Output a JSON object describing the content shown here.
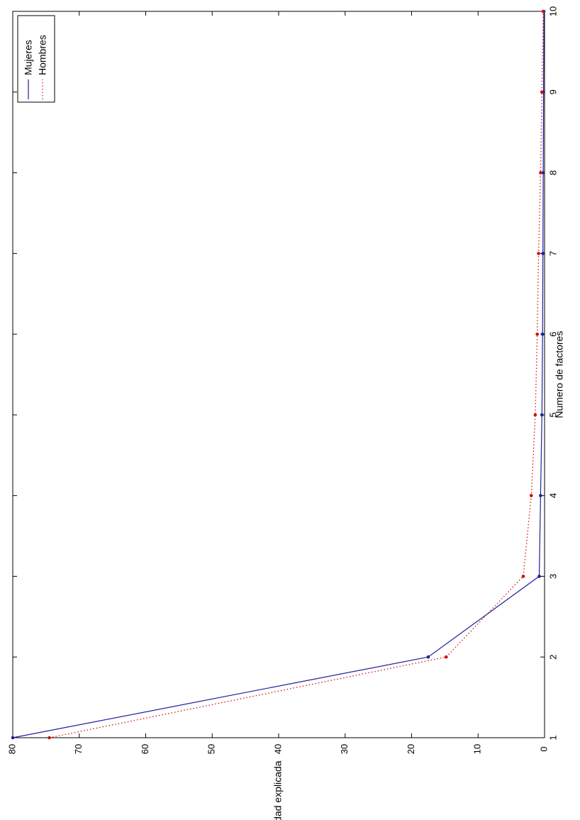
{
  "chart_data": {
    "type": "line",
    "xlabel": "Numero de factores",
    "ylabel": "Variabilidad explicada",
    "x": [
      1,
      2,
      3,
      4,
      5,
      6,
      7,
      8,
      9,
      10
    ],
    "xlim": [
      1,
      10
    ],
    "ylim": [
      0,
      80
    ],
    "yticks": [
      0,
      10,
      20,
      30,
      40,
      50,
      60,
      70,
      80
    ],
    "orientation": "rotated-90-clockwise",
    "grid": false,
    "legend": "top-right",
    "series": [
      {
        "name": "Mujeres",
        "values": [
          80,
          17.5,
          0.8,
          0.6,
          0.4,
          0.3,
          0.25,
          0.2,
          0.15,
          0.1
        ],
        "color": "#1f1f9e",
        "style": "solid",
        "marker": "dot"
      },
      {
        "name": "Hombres",
        "values": [
          74.5,
          14.8,
          3.2,
          2.0,
          1.4,
          1.1,
          0.9,
          0.6,
          0.4,
          0.2
        ],
        "color": "#d01010",
        "style": "dotted",
        "marker": "dot"
      }
    ]
  }
}
